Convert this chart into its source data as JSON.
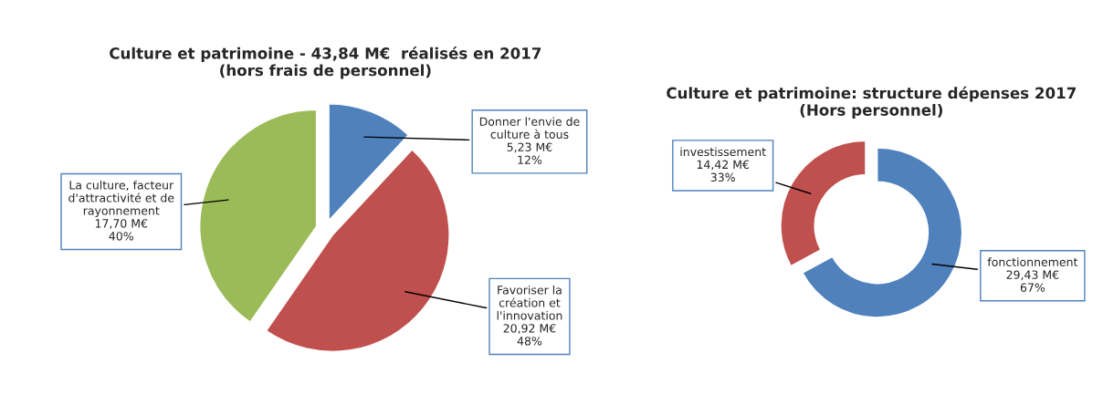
{
  "chart_data": [
    {
      "type": "pie",
      "title": "Culture et patrimoine - 43,84 M€  réalisés en 2017\n(hors frais de personnel)",
      "categories": [
        "Donner l'envie de culture à tous",
        "Favoriser la création et l'innovation",
        "La culture, facteur d'attractivité et de rayonnement"
      ],
      "values": [
        5.23,
        20.92,
        17.7
      ],
      "colors": [
        "#4f81bd",
        "#c0504d",
        "#9bbb59"
      ],
      "value_labels": [
        "5,23 M€\n12%",
        "20,92 M€\n48%",
        "17,70 M€\n40%"
      ]
    },
    {
      "type": "donut",
      "title": "Culture et patrimoine: structure dépenses 2017\n(Hors personnel)",
      "categories": [
        "fonctionnement",
        "investissement"
      ],
      "values": [
        29.43,
        14.42
      ],
      "colors": [
        "#4f81bd",
        "#c0504d"
      ],
      "value_labels": [
        "29,43 M€\n67%",
        "14,42 M€\n33%"
      ]
    }
  ]
}
